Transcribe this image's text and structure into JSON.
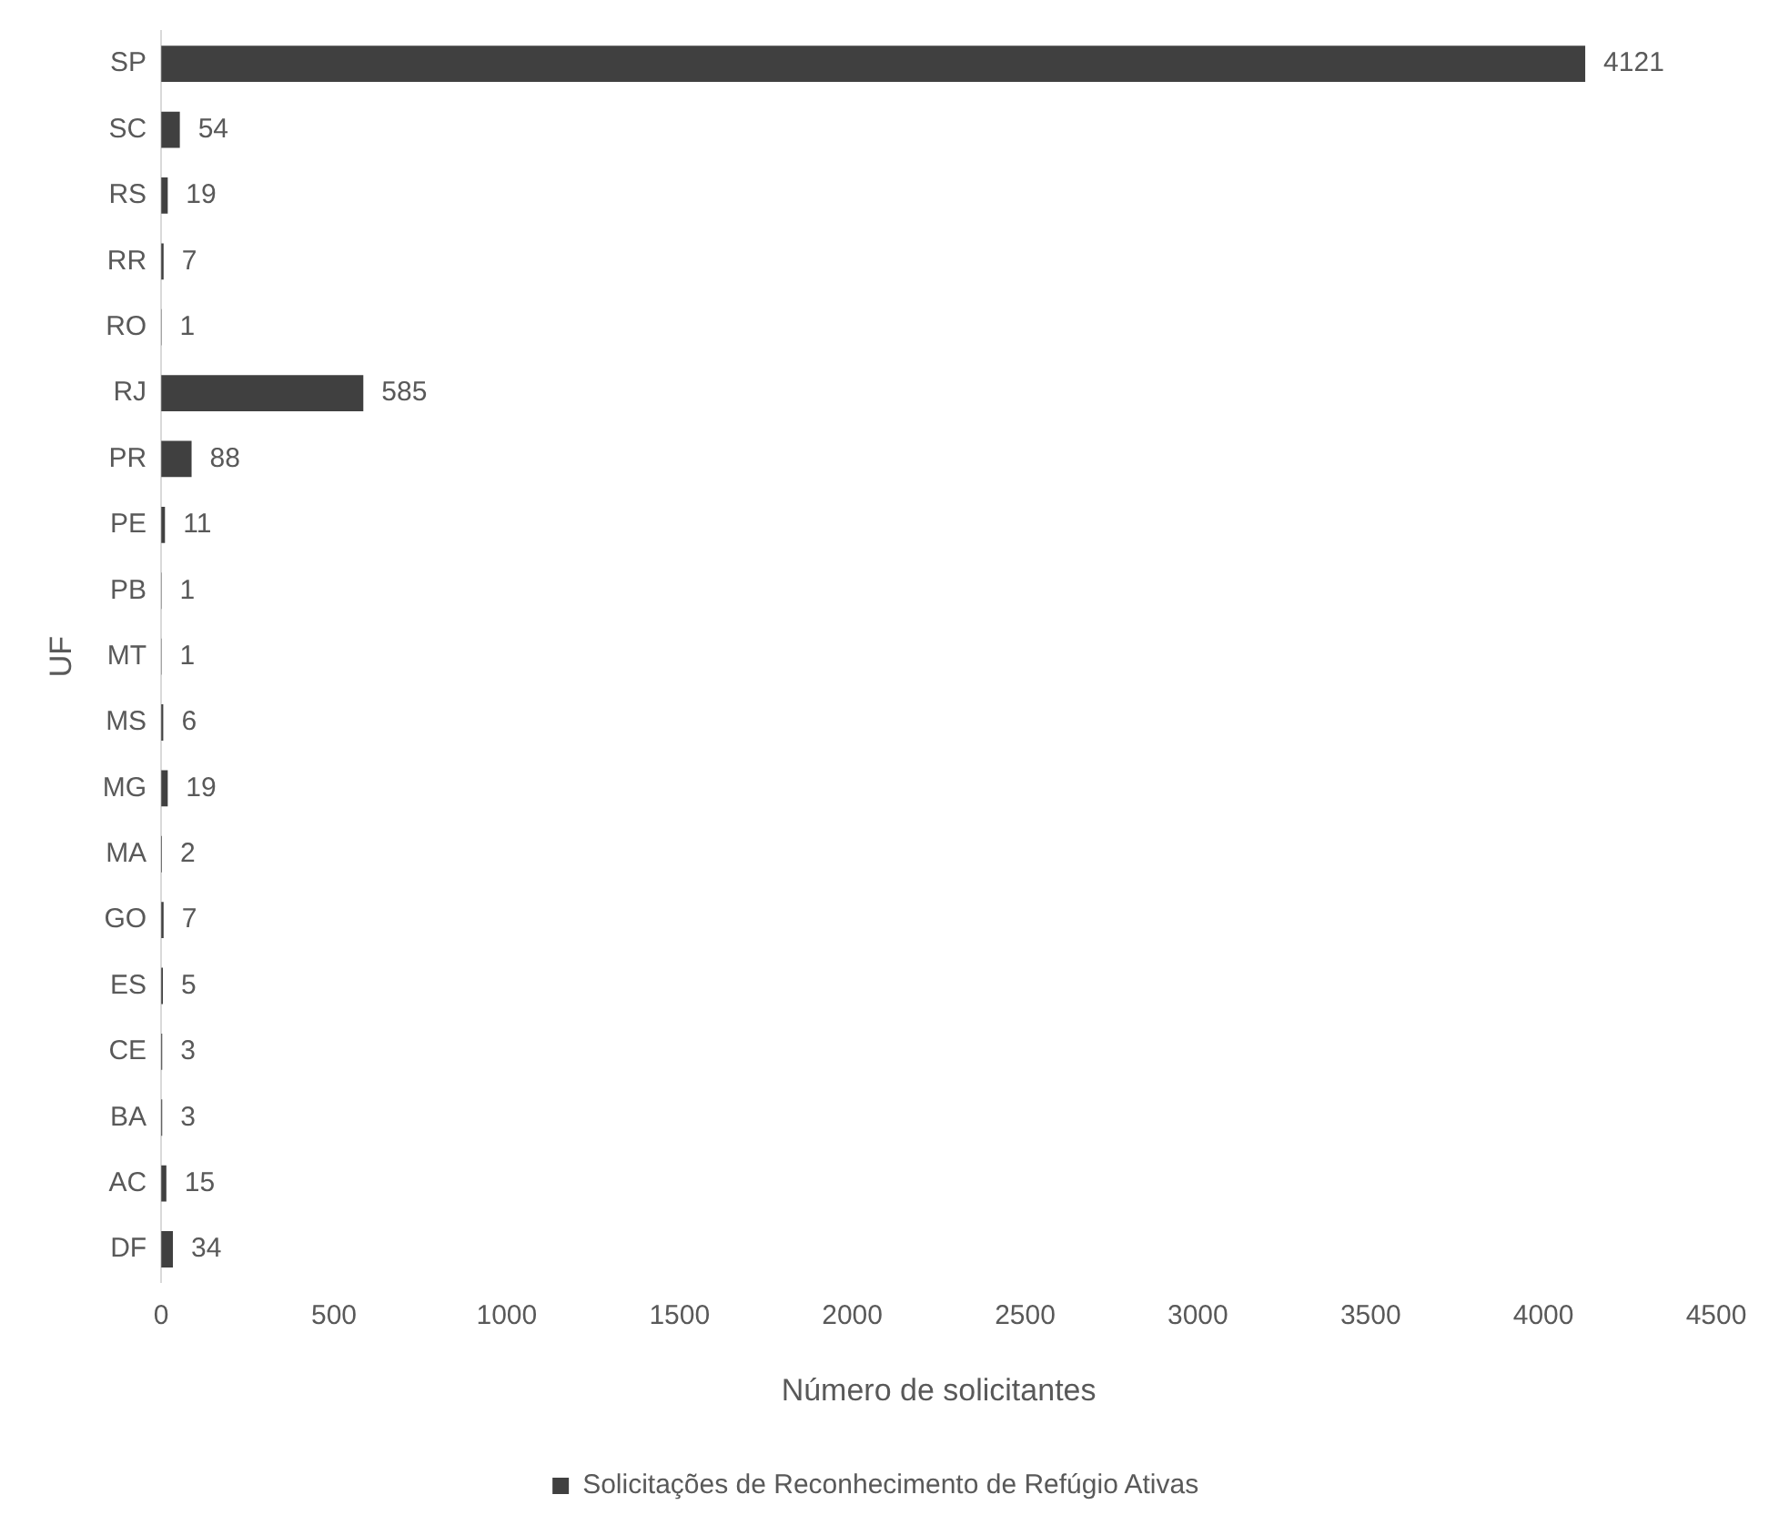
{
  "chart_data": {
    "type": "bar",
    "orientation": "horizontal",
    "xlabel": "Número de solicitantes",
    "ylabel": "UF",
    "categories": [
      "SP",
      "SC",
      "RS",
      "RR",
      "RO",
      "RJ",
      "PR",
      "PE",
      "PB",
      "MT",
      "MS",
      "MG",
      "MA",
      "GO",
      "ES",
      "CE",
      "BA",
      "AC",
      "DF"
    ],
    "series": [
      {
        "name": "Solicitações de Reconhecimento de Refúgio Ativas",
        "color": "#404040",
        "values": [
          4121,
          54,
          19,
          7,
          1,
          585,
          88,
          11,
          1,
          1,
          6,
          19,
          2,
          7,
          5,
          3,
          3,
          15,
          34
        ]
      }
    ],
    "xlim": [
      0,
      4500
    ],
    "xticks": [
      0,
      500,
      1000,
      1500,
      2000,
      2500,
      3000,
      3500,
      4000,
      4500
    ],
    "grid": false,
    "legend": "bottom",
    "data_labels": true
  }
}
